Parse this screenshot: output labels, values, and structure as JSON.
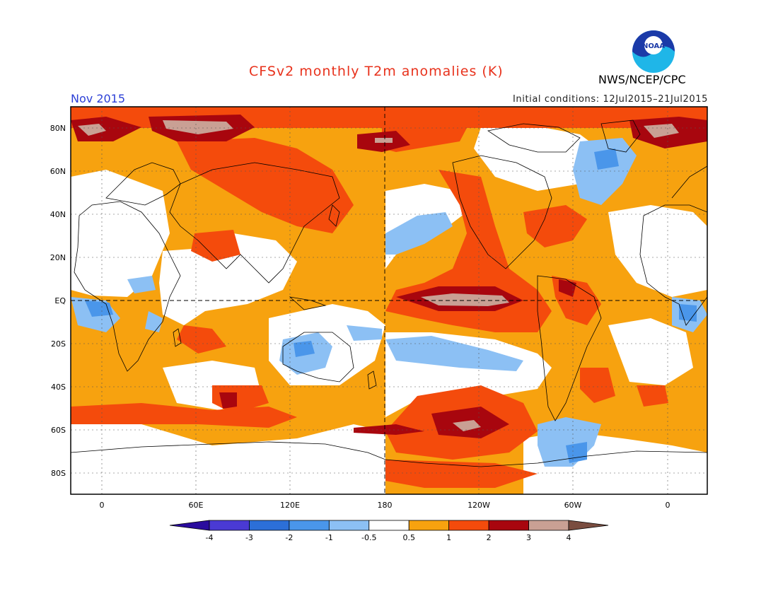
{
  "title": "CFSv2 monthly T2m anomalies (K)",
  "month": "Nov 2015",
  "initial_conditions": "Initial conditions: 12Jul2015–21Jul2015",
  "agency": "NWS/NCEP/CPC",
  "logo_text": "NOAA",
  "lat_labels": [
    "80N",
    "60N",
    "40N",
    "20N",
    "EQ",
    "20S",
    "40S",
    "60S",
    "80S"
  ],
  "lon_labels": [
    "0",
    "60E",
    "120E",
    "180",
    "120W",
    "60W",
    "0"
  ],
  "colorbar": {
    "labels": [
      "-4",
      "-3",
      "-2",
      "-1",
      "-0.5",
      "0.5",
      "1",
      "2",
      "3",
      "4"
    ],
    "colors": [
      "#2a0c9e",
      "#4a3ad4",
      "#2c6fd8",
      "#4a96ea",
      "#8cc0f4",
      "#ffffff",
      "#f7a20f",
      "#f44b0c",
      "#a8060e",
      "#c9a094",
      "#7a4d40"
    ]
  }
}
